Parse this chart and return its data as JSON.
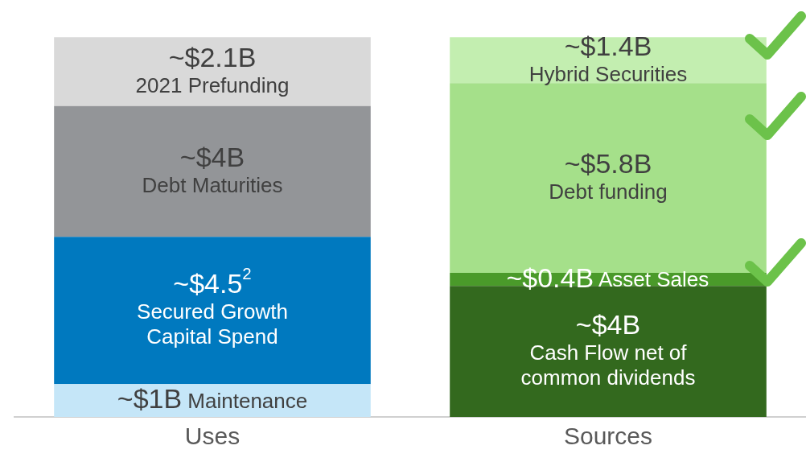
{
  "chart_data": {
    "type": "bar",
    "stacked": true,
    "legend": false,
    "tick_labels": "x",
    "grid": false,
    "categories": [
      "Uses",
      "Sources"
    ],
    "series": [
      {
        "name": "Maintenance",
        "color": "#c5e6f8",
        "values": [
          1,
          null
        ],
        "value_labels": [
          "~$1B",
          null
        ]
      },
      {
        "name": "Secured Growth Capital Spend",
        "color": "#0079bf",
        "values": [
          4.5,
          null
        ],
        "value_labels": [
          "~$4.5$^{2}$",
          null
        ]
      },
      {
        "name": "Debt Maturities",
        "color": "#939598",
        "values": [
          4,
          null
        ],
        "value_labels": [
          "~$4B",
          null
        ]
      },
      {
        "name": "2021 Prefunding",
        "color": "#d9d9d9",
        "values": [
          2.1,
          null
        ],
        "value_labels": [
          "~$2.1B",
          null
        ]
      },
      {
        "name": "Cash Flow net of common dividends",
        "color": "#33691e",
        "values": [
          null,
          4
        ],
        "value_labels": [
          null,
          "~$4B"
        ]
      },
      {
        "name": "Asset Sales",
        "color": "#4a9a2a",
        "values": [
          null,
          0.4
        ],
        "value_labels": [
          null,
          "~$0.4B"
        ]
      },
      {
        "name": "Debt funding",
        "color": "#a5e08a",
        "values": [
          null,
          5.8
        ],
        "value_labels": [
          null,
          "~$5.8B"
        ]
      },
      {
        "name": "Hybrid Securities",
        "color": "#c3eeb0",
        "values": [
          null,
          1.4
        ],
        "value_labels": [
          null,
          "~$1.4B"
        ]
      }
    ]
  }
}
